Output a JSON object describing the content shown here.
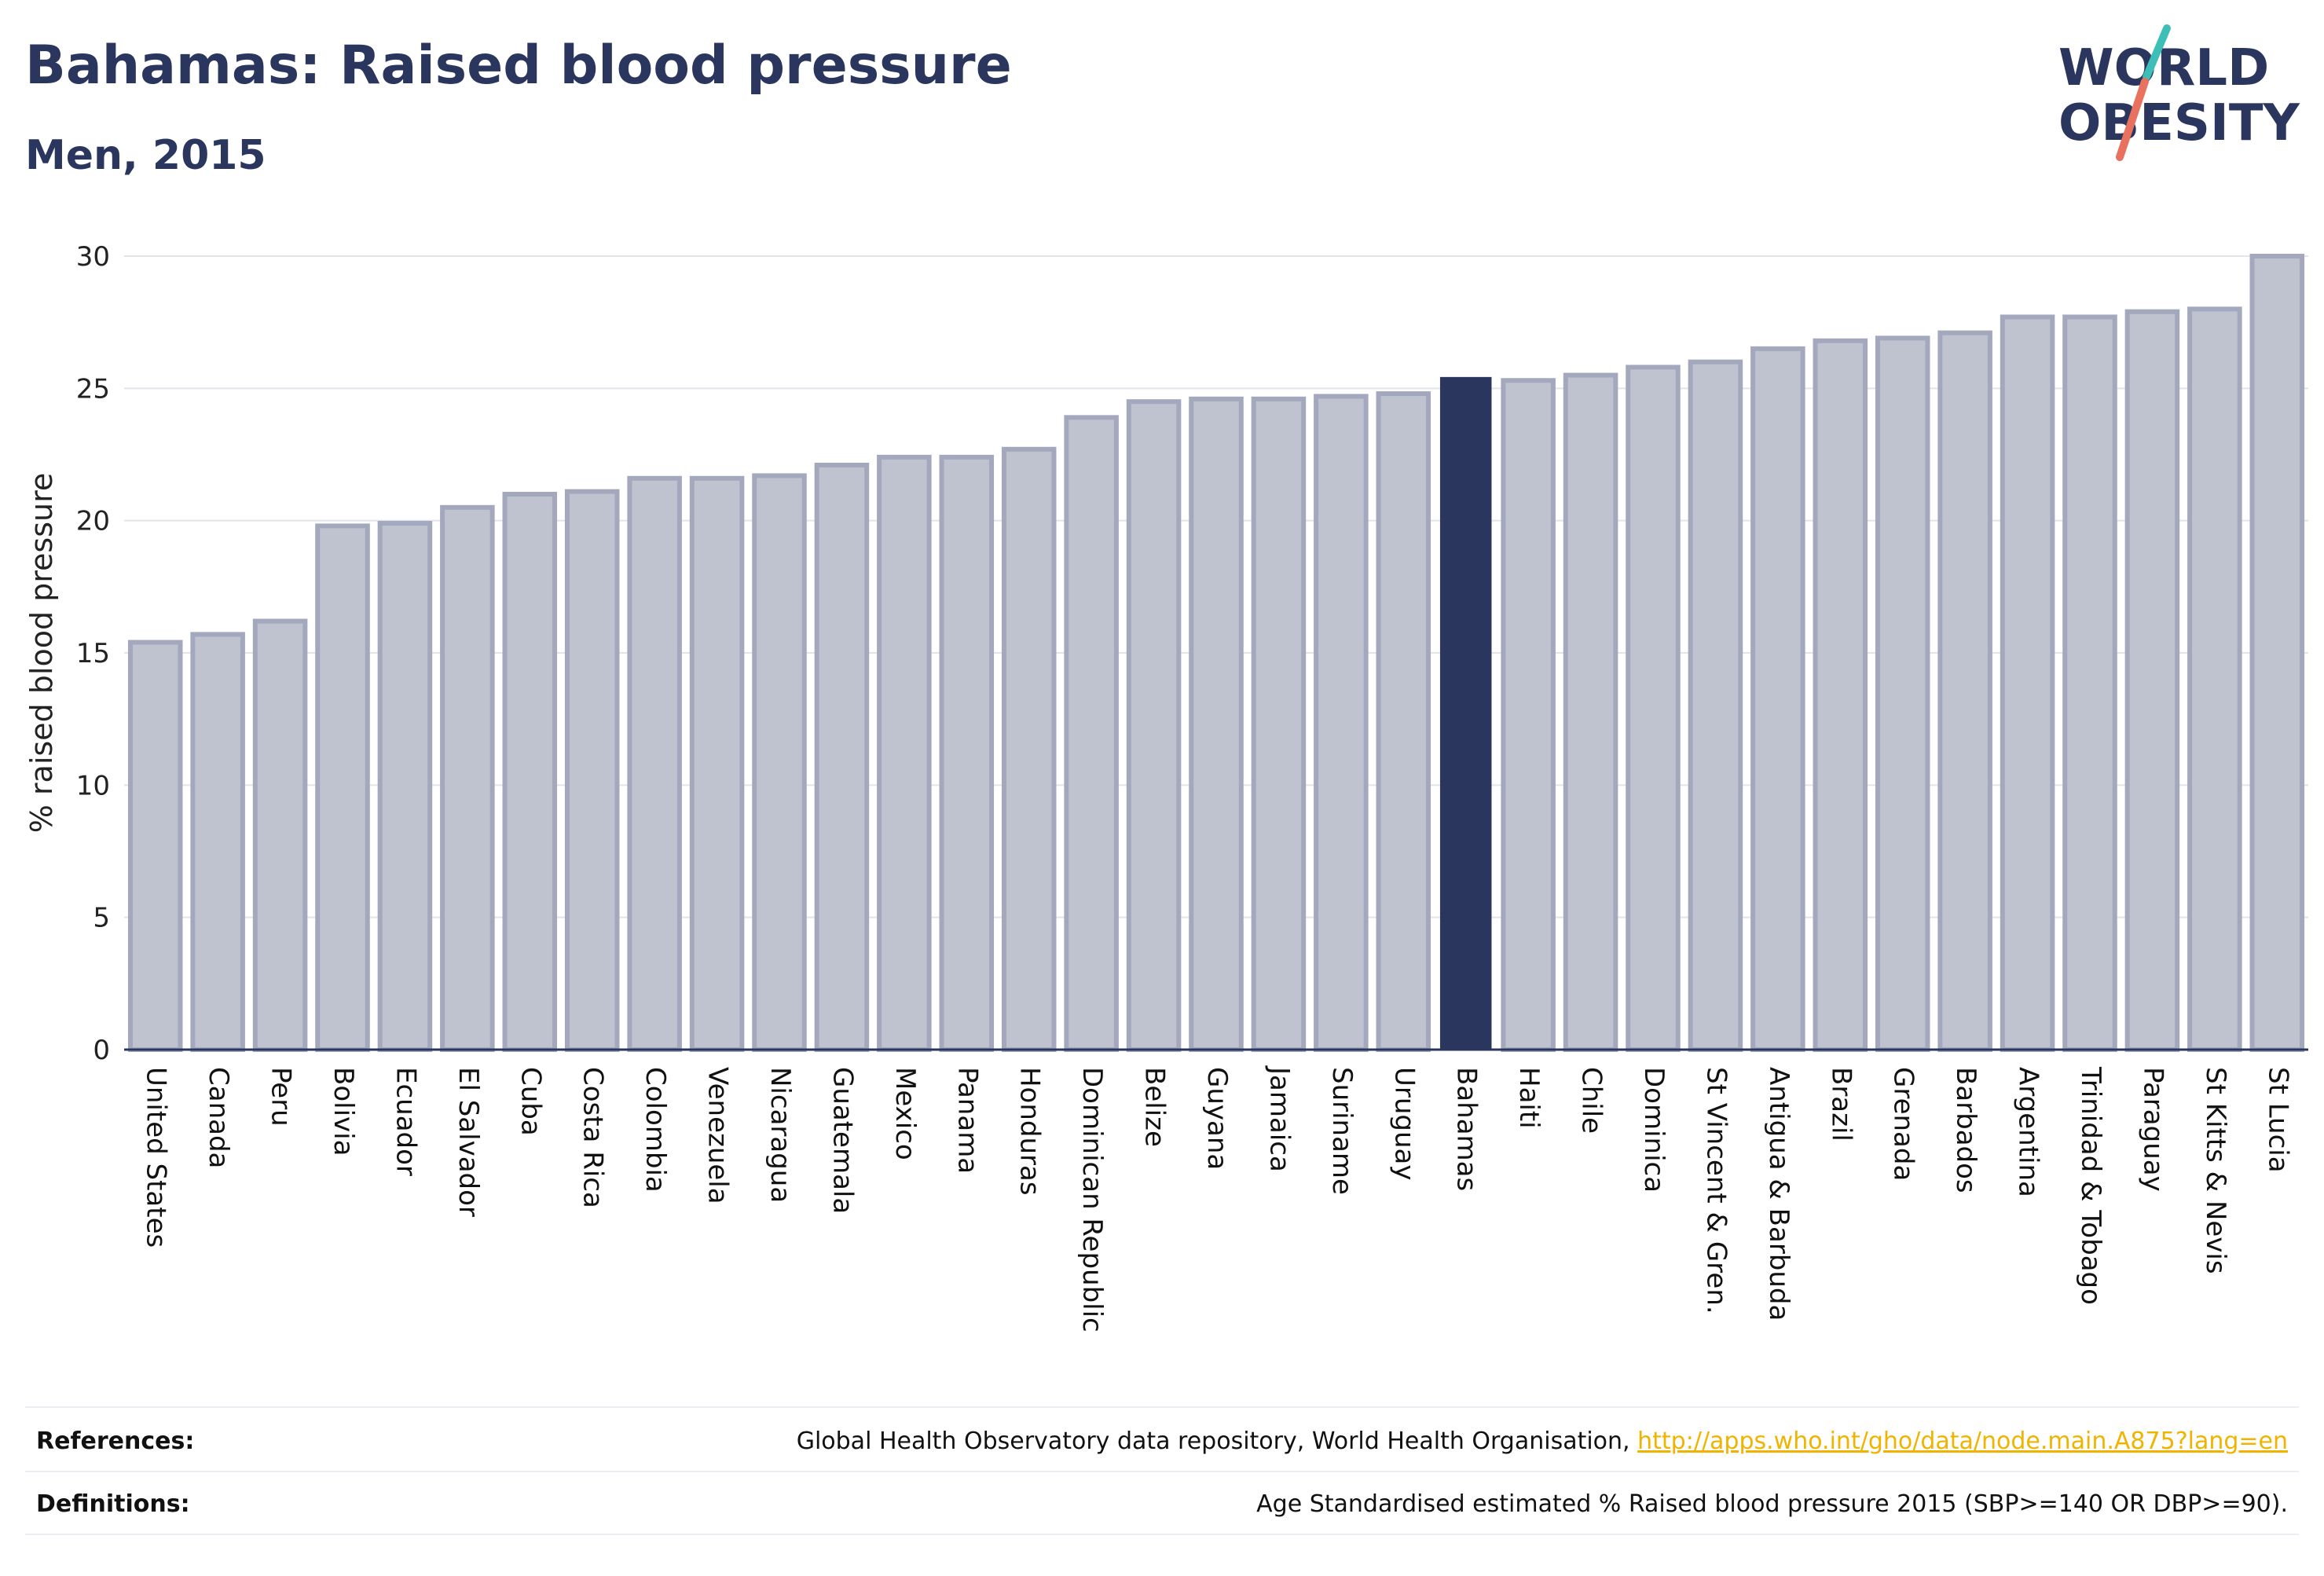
{
  "title": "Bahamas: Raised blood pressure",
  "subtitle": "Men, 2015",
  "logo": {
    "line1": "WORLD",
    "line2": "OBESITY"
  },
  "colors": {
    "highlight": "#2b365f",
    "bar_fill": "#bfc2cf",
    "bar_stroke": "#a3a8bd",
    "accent_teal": "#3dbfb8",
    "accent_coral": "#e8725f",
    "link": "#f0b400"
  },
  "chart_data": {
    "type": "bar",
    "ylabel": "% raised blood pressure",
    "xlabel": "",
    "ylim": [
      0,
      30
    ],
    "yticks": [
      0,
      5,
      10,
      15,
      20,
      25,
      30
    ],
    "grid": true,
    "highlight": "Bahamas",
    "categories": [
      "United States",
      "Canada",
      "Peru",
      "Bolivia",
      "Ecuador",
      "El Salvador",
      "Cuba",
      "Costa Rica",
      "Colombia",
      "Venezuela",
      "Nicaragua",
      "Guatemala",
      "Mexico",
      "Panama",
      "Honduras",
      "Dominican Republic",
      "Belize",
      "Guyana",
      "Jamaica",
      "Suriname",
      "Uruguay",
      "Bahamas",
      "Haiti",
      "Chile",
      "Dominica",
      "St Vincent & Gren.",
      "Antigua & Barbuda",
      "Brazil",
      "Grenada",
      "Barbados",
      "Argentina",
      "Trinidad & Tobago",
      "Paraguay",
      "St Kitts & Nevis",
      "St Lucia"
    ],
    "values": [
      15.4,
      15.7,
      16.2,
      19.8,
      19.9,
      20.5,
      21.0,
      21.1,
      21.6,
      21.6,
      21.7,
      22.1,
      22.4,
      22.4,
      22.7,
      23.9,
      24.5,
      24.6,
      24.6,
      24.7,
      24.8,
      25.4,
      25.3,
      25.5,
      25.8,
      26.0,
      26.5,
      26.8,
      26.9,
      27.1,
      27.7,
      27.7,
      27.9,
      28.0,
      30.0
    ]
  },
  "footer": {
    "references_label": "References:",
    "references_text": "Global Health Observatory data repository, World Health Organisation,",
    "references_link": "http://apps.who.int/gho/data/node.main.A875?lang=en",
    "definitions_label": "Definitions:",
    "definitions_text": "Age Standardised estimated % Raised blood pressure 2015 (SBP>=140 OR DBP>=90)."
  }
}
